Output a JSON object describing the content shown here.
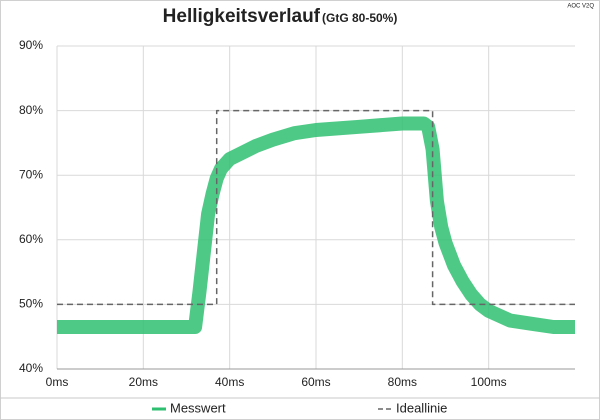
{
  "chart_data": {
    "type": "line",
    "title": "Helligkeitsverlauf",
    "subtitle": "(GtG 80-50%)",
    "annotation": "AOC V2Q",
    "xlim": [
      0,
      120
    ],
    "xticks": [
      {
        "value": 0,
        "label": "0ms"
      },
      {
        "value": 20,
        "label": "20ms"
      },
      {
        "value": 40,
        "label": "40ms"
      },
      {
        "value": 60,
        "label": "60ms"
      },
      {
        "value": 80,
        "label": "80ms"
      },
      {
        "value": 100,
        "label": "100ms"
      }
    ],
    "ylim": [
      40,
      90
    ],
    "yticks": [
      {
        "value": 40,
        "label": "40%"
      },
      {
        "value": 50,
        "label": "50%"
      },
      {
        "value": 60,
        "label": "60%"
      },
      {
        "value": 70,
        "label": "70%"
      },
      {
        "value": 80,
        "label": "80%"
      },
      {
        "value": 90,
        "label": "90%"
      }
    ],
    "grid": true,
    "legend": "bottom",
    "series": [
      {
        "name": "Messwert",
        "color": "#2fbf71",
        "dash": false,
        "x": [
          0,
          10,
          20,
          30,
          32,
          33,
          34,
          35,
          36,
          37,
          38,
          40,
          43,
          46,
          50,
          55,
          60,
          70,
          80,
          85,
          86,
          87,
          88,
          89,
          90,
          92,
          94,
          96,
          98,
          100,
          105,
          110,
          115,
          120
        ],
        "values": [
          46.5,
          46.5,
          46.5,
          46.5,
          46.5,
          52,
          58,
          64,
          67,
          69.5,
          71,
          72.5,
          73.5,
          74.5,
          75.5,
          76.5,
          77,
          77.5,
          78,
          78,
          77.5,
          74,
          66,
          62,
          59.5,
          56,
          53.5,
          51.5,
          50,
          49,
          47.5,
          47,
          46.5,
          46.5
        ]
      },
      {
        "name": "Ideallinie",
        "color": "#666666",
        "dash": true,
        "x": [
          0,
          37,
          37,
          87,
          87,
          120
        ],
        "values": [
          50,
          50,
          80,
          80,
          50,
          50
        ]
      }
    ]
  }
}
